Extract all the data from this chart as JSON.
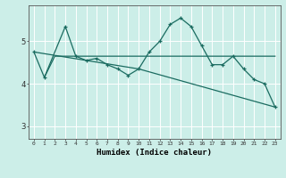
{
  "xlabel": "Humidex (Indice chaleur)",
  "bg_color": "#cceee8",
  "line_color": "#1a6b60",
  "grid_color": "#ffffff",
  "xmin": -0.5,
  "xmax": 23.5,
  "ymin": 2.7,
  "ymax": 5.85,
  "yticks": [
    3,
    4,
    5
  ],
  "xtick_labels": [
    "0",
    "1",
    "2",
    "3",
    "4",
    "5",
    "6",
    "7",
    "8",
    "9",
    "10",
    "11",
    "12",
    "13",
    "14",
    "15",
    "16",
    "17",
    "18",
    "19",
    "20",
    "21",
    "22",
    "23"
  ],
  "series1_x": [
    0,
    1,
    3,
    4,
    5,
    6,
    7,
    8,
    9,
    10,
    11,
    12,
    13,
    14,
    15,
    16,
    17,
    18,
    19,
    20,
    21,
    22,
    23
  ],
  "series1_y": [
    4.75,
    4.15,
    5.35,
    4.65,
    4.55,
    4.6,
    4.45,
    4.35,
    4.2,
    4.35,
    4.75,
    5.0,
    5.4,
    5.55,
    5.35,
    4.9,
    4.45,
    4.45,
    4.65,
    4.35,
    4.1,
    4.0,
    3.45
  ],
  "series2_x": [
    1,
    2,
    10,
    19,
    23
  ],
  "series2_y": [
    4.15,
    4.65,
    4.65,
    4.65,
    4.65
  ],
  "series3_x": [
    0,
    10,
    23
  ],
  "series3_y": [
    4.75,
    4.35,
    3.45
  ]
}
